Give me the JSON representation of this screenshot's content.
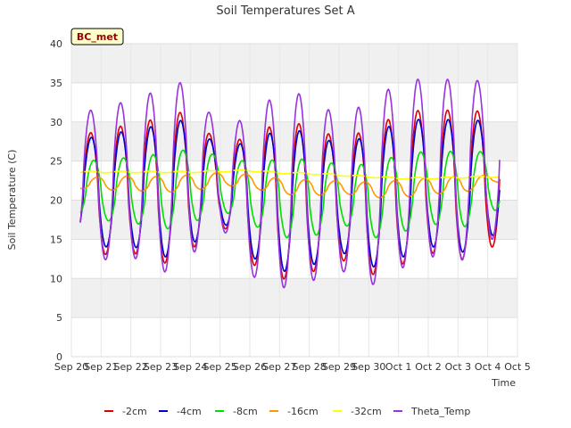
{
  "chart_data": {
    "type": "line",
    "title": "Soil Temperatures Set A",
    "xlabel": "Time",
    "ylabel": "Soil Temperature (C)",
    "ylim": [
      0,
      40
    ],
    "yticks": [
      0,
      5,
      10,
      15,
      20,
      25,
      30,
      35,
      40
    ],
    "x_start": "Sep 20",
    "x_end": "Oct 5",
    "xticks": [
      "Sep 20",
      "Sep 21",
      "Sep 22",
      "Sep 23",
      "Sep 24",
      "Sep 25",
      "Sep 26",
      "Sep 27",
      "Sep 28",
      "Sep 29",
      "Sep 30",
      "Oct 1",
      "Oct 2",
      "Oct 3",
      "Oct 4",
      "Oct 5"
    ],
    "grid": true,
    "legend_position": "bottom",
    "station_label": "BC_met",
    "x_daily": [
      "Sep 20",
      "Sep 21",
      "Sep 22",
      "Sep 23",
      "Sep 24",
      "Sep 25",
      "Sep 26",
      "Sep 27",
      "Sep 28",
      "Sep 29",
      "Sep 30",
      "Oct 1",
      "Oct 2",
      "Oct 3",
      "Oct 4"
    ],
    "series": [
      {
        "name": "-2cm",
        "color": "#dd0000",
        "daily_max": [
          28.3,
          28.8,
          29.8,
          30.5,
          31.6,
          26.8,
          28.3,
          29.9,
          29.7,
          27.8,
          29.0,
          31.0,
          31.7,
          31.4,
          31.4
        ],
        "daily_min": [
          15.8,
          13.0,
          13.4,
          11.7,
          13.5,
          17.2,
          12.0,
          9.8,
          10.6,
          12.6,
          10.3,
          11.6,
          13.4,
          12.2,
          14.0
        ]
      },
      {
        "name": "-4cm",
        "color": "#0000cc",
        "daily_max": [
          27.7,
          28.2,
          29.0,
          29.6,
          30.5,
          26.3,
          27.7,
          29.0,
          28.8,
          27.0,
          28.3,
          30.0,
          30.5,
          30.2,
          30.2
        ],
        "daily_min": [
          16.5,
          14.0,
          14.2,
          12.5,
          14.2,
          17.6,
          12.8,
          10.8,
          11.5,
          13.5,
          11.3,
          12.5,
          14.2,
          13.0,
          15.5
        ]
      },
      {
        "name": "-8cm",
        "color": "#00dd00",
        "daily_max": [
          24.9,
          25.2,
          25.5,
          26.0,
          26.6,
          25.5,
          24.8,
          25.3,
          25.2,
          24.5,
          24.6,
          25.9,
          26.3,
          26.2,
          26.2
        ],
        "daily_min": [
          18.5,
          17.4,
          17.1,
          16.2,
          17.2,
          18.6,
          16.8,
          15.2,
          15.3,
          17.0,
          15.1,
          15.9,
          17.0,
          16.3,
          18.7
        ]
      },
      {
        "name": "-16cm",
        "color": "#ff9900",
        "daily_max": [
          22.8,
          23.0,
          23.1,
          23.0,
          23.3,
          23.6,
          23.2,
          22.7,
          22.6,
          22.4,
          22.3,
          22.6,
          22.9,
          23.1,
          23.2
        ],
        "daily_min": [
          21.5,
          21.3,
          21.2,
          21.0,
          21.3,
          21.9,
          21.4,
          20.7,
          20.6,
          20.8,
          20.3,
          20.4,
          20.8,
          21.0,
          22.3
        ]
      },
      {
        "name": "-32cm",
        "color": "#ffff00",
        "daily_max": [
          23.7,
          23.7,
          23.7,
          23.7,
          23.7,
          23.8,
          23.9,
          23.6,
          23.5,
          23.3,
          23.1,
          22.9,
          22.9,
          23.0,
          23.1
        ],
        "daily_min": [
          23.5,
          23.5,
          23.5,
          23.5,
          23.5,
          23.6,
          23.7,
          23.4,
          23.3,
          23.1,
          22.9,
          22.7,
          22.7,
          22.8,
          22.9
        ]
      },
      {
        "name": "Theta_Temp",
        "color": "#9933dd",
        "daily_max": [
          31.3,
          31.6,
          32.9,
          34.1,
          35.5,
          28.8,
          30.9,
          33.8,
          33.5,
          30.5,
          32.6,
          35.0,
          35.7,
          35.3,
          35.3
        ],
        "daily_min": [
          15.2,
          12.3,
          12.9,
          10.5,
          12.8,
          16.9,
          10.4,
          8.7,
          9.5,
          11.2,
          8.9,
          11.1,
          12.9,
          11.9,
          15.0
        ]
      }
    ]
  }
}
